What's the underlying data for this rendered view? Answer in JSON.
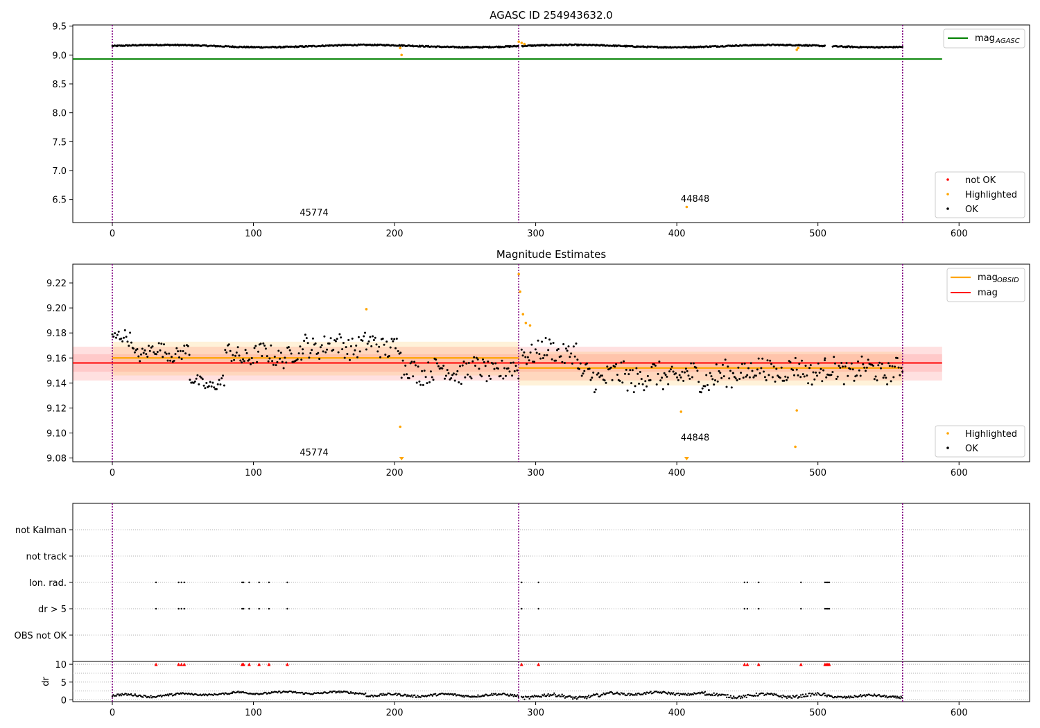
{
  "colors": {
    "ok": "#000000",
    "highlighted": "#ffa500",
    "not_ok": "#ff0000",
    "agasc_line": "#008000",
    "obsid_line": "#ffa500",
    "mag_line": "#ff0000",
    "obs_boundary": "#800080",
    "grid": "#b0b0b0"
  },
  "chart_data": [
    {
      "id": "agasc",
      "type": "scatter",
      "title": "AGASC ID 254943632.0",
      "xlim": [
        -28,
        650
      ],
      "ylim": [
        6.1,
        9.52
      ],
      "xticks": [
        0,
        100,
        200,
        300,
        400,
        500,
        600
      ],
      "yticks": [
        6.5,
        7.0,
        7.5,
        8.0,
        8.5,
        9.0,
        9.5
      ],
      "ytick_labels": [
        "6.5",
        "7.0",
        "7.5",
        "8.0",
        "8.5",
        "9.0",
        "9.5"
      ],
      "obs_boundaries": [
        0,
        288,
        560
      ],
      "obs_labels": [
        {
          "text": "45774",
          "x": 143,
          "y": 6.22
        },
        {
          "text": "44848",
          "x": 413,
          "y": 6.46
        }
      ],
      "mag_agasc": 8.93,
      "mag_agasc_xrange": [
        -28,
        588
      ],
      "ok_series": {
        "name": "OK",
        "x_range": [
          0,
          560
        ],
        "base": 9.155,
        "gaps": [
          [
            288,
            290
          ],
          [
            505,
            510
          ]
        ]
      },
      "highlighted_points": [
        {
          "x": 204,
          "y": 9.12
        },
        {
          "x": 205,
          "y": 9.0
        },
        {
          "x": 288,
          "y": 9.23
        },
        {
          "x": 290,
          "y": 9.21
        },
        {
          "x": 292,
          "y": 9.19
        },
        {
          "x": 407,
          "y": 6.37
        },
        {
          "x": 485,
          "y": 9.09
        },
        {
          "x": 486,
          "y": 9.12
        }
      ],
      "legend_upper": [
        {
          "label": "mag",
          "sub": "AGASC",
          "kind": "line",
          "color_key": "agasc_line"
        }
      ],
      "legend_lower": [
        {
          "label": "not OK",
          "kind": "dot",
          "color_key": "not_ok"
        },
        {
          "label": "Highlighted",
          "kind": "dot",
          "color_key": "highlighted"
        },
        {
          "label": "OK",
          "kind": "dot",
          "color_key": "ok"
        }
      ]
    },
    {
      "id": "estimates",
      "type": "scatter",
      "title": "Magnitude Estimates",
      "xlim": [
        -28,
        650
      ],
      "ylim": [
        9.077,
        9.235
      ],
      "xticks": [
        0,
        100,
        200,
        300,
        400,
        500,
        600
      ],
      "yticks": [
        9.08,
        9.1,
        9.12,
        9.14,
        9.16,
        9.18,
        9.2,
        9.22
      ],
      "ytick_labels": [
        "9.08",
        "9.10",
        "9.12",
        "9.14",
        "9.16",
        "9.18",
        "9.20",
        "9.22"
      ],
      "obs_boundaries": [
        0,
        288,
        560
      ],
      "obs_labels": [
        {
          "text": "45774",
          "x": 143,
          "y": 9.082
        },
        {
          "text": "44848",
          "x": 413,
          "y": 9.094
        }
      ],
      "mag": {
        "value": 9.156,
        "band_inner": [
          9.149,
          9.163
        ],
        "band_outer": [
          9.142,
          9.169
        ],
        "xrange": [
          -28,
          588
        ]
      },
      "mag_obsid": [
        {
          "x": [
            0,
            288
          ],
          "value": 9.16,
          "band": [
            9.146,
            9.173
          ]
        },
        {
          "x": [
            288,
            560
          ],
          "value": 9.152,
          "band": [
            9.138,
            9.165
          ]
        }
      ],
      "segments_ok": [
        {
          "x_range": [
            0,
            15
          ],
          "level": 9.175,
          "amp": 0.006
        },
        {
          "x_range": [
            15,
            55
          ],
          "level": 9.165,
          "amp": 0.006
        },
        {
          "x_range": [
            55,
            80
          ],
          "level": 9.14,
          "amp": 0.005
        },
        {
          "x_range": [
            80,
            135
          ],
          "level": 9.162,
          "amp": 0.008
        },
        {
          "x_range": [
            135,
            205
          ],
          "level": 9.17,
          "amp": 0.009
        },
        {
          "x_range": [
            205,
            288
          ],
          "level": 9.15,
          "amp": 0.009
        },
        {
          "x_range": [
            290,
            330
          ],
          "level": 9.165,
          "amp": 0.009
        },
        {
          "x_range": [
            330,
            440
          ],
          "level": 9.145,
          "amp": 0.011
        },
        {
          "x_range": [
            440,
            505
          ],
          "level": 9.15,
          "amp": 0.009
        },
        {
          "x_range": [
            505,
            560
          ],
          "level": 9.15,
          "amp": 0.009
        }
      ],
      "highlighted_points": [
        {
          "x": 180,
          "y": 9.199
        },
        {
          "x": 204,
          "y": 9.105
        },
        {
          "x": 288,
          "y": 9.227
        },
        {
          "x": 289,
          "y": 9.213
        },
        {
          "x": 291,
          "y": 9.195
        },
        {
          "x": 293,
          "y": 9.188
        },
        {
          "x": 296,
          "y": 9.186
        },
        {
          "x": 403,
          "y": 9.117
        },
        {
          "x": 485,
          "y": 9.118
        },
        {
          "x": 484,
          "y": 9.089
        }
      ],
      "off_axis_markers": [
        {
          "x": 205
        },
        {
          "x": 407
        }
      ],
      "legend_upper": [
        {
          "label": "mag",
          "sub": "OBSID",
          "kind": "line",
          "color_key": "obsid_line"
        },
        {
          "label": "mag",
          "kind": "line",
          "color_key": "mag_line"
        }
      ],
      "legend_lower": [
        {
          "label": "Highlighted",
          "kind": "dot",
          "color_key": "highlighted"
        },
        {
          "label": "OK",
          "kind": "dot",
          "color_key": "ok"
        }
      ]
    },
    {
      "id": "flags",
      "type": "scatter",
      "title": "",
      "xlim": [
        -28,
        650
      ],
      "categories": [
        "OBS not OK",
        "dr > 5",
        "Ion. rad.",
        "not track",
        "not Kalman"
      ],
      "obs_boundaries": [
        0,
        288,
        560
      ],
      "flagged_x": [
        31,
        47,
        49,
        51,
        92,
        93,
        97,
        104,
        111,
        124,
        290,
        302,
        448,
        450,
        458,
        488,
        505,
        506,
        507,
        508
      ],
      "rows_flagged": [
        "dr > 5",
        "Ion. rad."
      ]
    },
    {
      "id": "dr",
      "type": "scatter",
      "title": "",
      "ylabel": "dr",
      "xlim": [
        -28,
        650
      ],
      "ylim": [
        -0.5,
        10.8
      ],
      "xticks": [
        0,
        100,
        200,
        300,
        400,
        500,
        600
      ],
      "yticks": [
        0,
        5,
        10
      ],
      "ytick_labels": [
        "0",
        "5",
        "10"
      ],
      "obs_boundaries": [
        0,
        288,
        560
      ],
      "dr_segments": [
        {
          "x_range": [
            0,
            45
          ],
          "level": 1.2,
          "amp": 0.6
        },
        {
          "x_range": [
            45,
            85
          ],
          "level": 1.6,
          "amp": 0.4
        },
        {
          "x_range": [
            85,
            120
          ],
          "level": 2.0,
          "amp": 0.5
        },
        {
          "x_range": [
            120,
            180
          ],
          "level": 2.0,
          "amp": 0.5
        },
        {
          "x_range": [
            180,
            288
          ],
          "level": 1.3,
          "amp": 0.6
        },
        {
          "x_range": [
            290,
            350
          ],
          "level": 1.0,
          "amp": 0.9
        },
        {
          "x_range": [
            350,
            420
          ],
          "level": 1.8,
          "amp": 0.6
        },
        {
          "x_range": [
            420,
            505
          ],
          "level": 1.2,
          "amp": 0.8
        },
        {
          "x_range": [
            505,
            560
          ],
          "level": 1.0,
          "amp": 0.6
        }
      ],
      "clipped_value": 10
    }
  ]
}
